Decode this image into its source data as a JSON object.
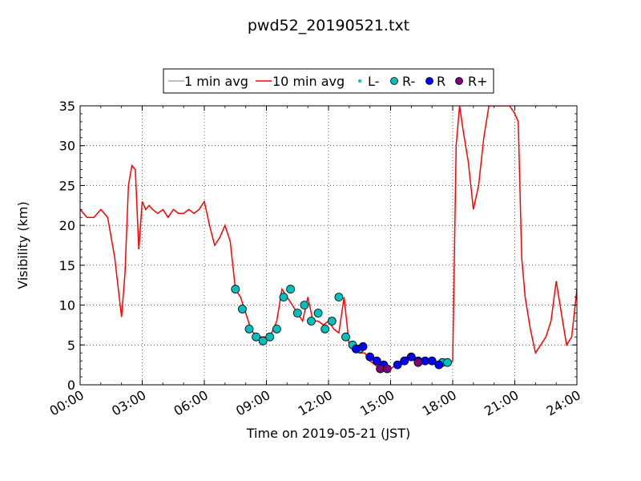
{
  "chart_data": {
    "type": "line",
    "title": "pwd52_20190521.txt",
    "xlabel": "Time on 2019-05-21 (JST)",
    "ylabel": "Visibility (km)",
    "xlim": [
      "00:00",
      "24:00"
    ],
    "ylim": [
      0,
      35
    ],
    "x_ticks": [
      "00:00",
      "03:00",
      "06:00",
      "09:00",
      "12:00",
      "15:00",
      "18:00",
      "21:00",
      "24:00"
    ],
    "y_ticks": [
      0,
      5,
      10,
      15,
      20,
      25,
      30,
      35
    ],
    "grid": true,
    "legend_placement": "top-center",
    "legend": [
      "1 min avg",
      "10 min avg",
      "L-",
      "R-",
      "R",
      "R+"
    ],
    "colors": {
      "1 min avg": "#a9a9a9",
      "10 min avg": "#ff0000",
      "L-": "#00bfbf",
      "R-": "#00bfbf",
      "R": "#0000ff",
      "R+": "#800080"
    },
    "series": [
      {
        "name": "10 min avg",
        "x": [
          "00:00",
          "00:20",
          "00:40",
          "01:00",
          "01:20",
          "01:40",
          "02:00",
          "02:10",
          "02:20",
          "02:30",
          "02:40",
          "02:50",
          "03:00",
          "03:10",
          "03:20",
          "03:30",
          "03:45",
          "04:00",
          "04:15",
          "04:30",
          "04:45",
          "05:00",
          "05:15",
          "05:30",
          "05:45",
          "06:00",
          "06:15",
          "06:30",
          "06:45",
          "07:00",
          "07:15",
          "07:30",
          "07:45",
          "08:00",
          "08:15",
          "08:30",
          "08:45",
          "09:00",
          "09:15",
          "09:30",
          "09:45",
          "10:00",
          "10:15",
          "10:30",
          "10:45",
          "11:00",
          "11:15",
          "11:30",
          "11:45",
          "12:00",
          "12:15",
          "12:30",
          "12:45",
          "13:00",
          "13:15",
          "13:30",
          "13:45",
          "14:00",
          "14:15",
          "14:30",
          "14:45",
          "15:00",
          "15:15",
          "15:30",
          "15:45",
          "16:00",
          "16:15",
          "16:30",
          "16:45",
          "17:00",
          "17:15",
          "17:30",
          "17:45",
          "18:00",
          "18:10",
          "18:20",
          "18:30",
          "18:45",
          "19:00",
          "19:15",
          "19:30",
          "19:45",
          "20:00",
          "20:15",
          "20:30",
          "20:45",
          "21:00",
          "21:10",
          "21:20",
          "21:30",
          "21:45",
          "22:00",
          "22:15",
          "22:30",
          "22:45",
          "23:00",
          "23:15",
          "23:30",
          "23:45",
          "24:00"
        ],
        "y": [
          22,
          21,
          21,
          22,
          21,
          16,
          8.5,
          14,
          25,
          27.5,
          27,
          17,
          23,
          22,
          22.5,
          22,
          21.5,
          22,
          21,
          22,
          21.5,
          21.5,
          22,
          21.5,
          22,
          23,
          20,
          17.5,
          18.5,
          20,
          18,
          12,
          11,
          9,
          7,
          6,
          6,
          6,
          6.5,
          8,
          12,
          11,
          10,
          9,
          8,
          11,
          8,
          8,
          7.5,
          8,
          7,
          6.5,
          11,
          5,
          4.5,
          4,
          4,
          3,
          2.5,
          2,
          2,
          2,
          2.5,
          3,
          3.5,
          3.5,
          3,
          3,
          3,
          3,
          2.5,
          2.5,
          2.5,
          3,
          30,
          35,
          32,
          28,
          22,
          25,
          31,
          35,
          35,
          35,
          35,
          35,
          34,
          33,
          16,
          11,
          7,
          4,
          5,
          6,
          8,
          13,
          9,
          5,
          6,
          12
        ]
      },
      {
        "name": "R-",
        "x": [
          "07:30",
          "07:50",
          "08:10",
          "08:30",
          "08:50",
          "09:10",
          "09:30",
          "09:50",
          "10:10",
          "10:30",
          "10:50",
          "11:10",
          "11:30",
          "11:50",
          "12:10",
          "12:30",
          "12:50",
          "13:10",
          "13:30",
          "17:30",
          "17:45"
        ],
        "y": [
          12,
          9.5,
          7,
          6,
          5.5,
          6,
          7,
          11,
          12,
          9,
          10,
          8,
          9,
          7,
          8,
          11,
          6,
          5,
          4.5,
          2.8,
          2.8
        ]
      },
      {
        "name": "R",
        "x": [
          "13:20",
          "13:40",
          "14:00",
          "14:20",
          "14:40",
          "15:20",
          "15:40",
          "16:00",
          "16:20",
          "16:40",
          "17:00",
          "17:20"
        ],
        "y": [
          4.5,
          4.8,
          3.5,
          3,
          2.5,
          2.5,
          3,
          3.5,
          3,
          3,
          3,
          2.5
        ]
      },
      {
        "name": "R+",
        "x": [
          "14:30",
          "14:50",
          "16:20"
        ],
        "y": [
          2,
          2,
          2.8
        ]
      }
    ]
  }
}
